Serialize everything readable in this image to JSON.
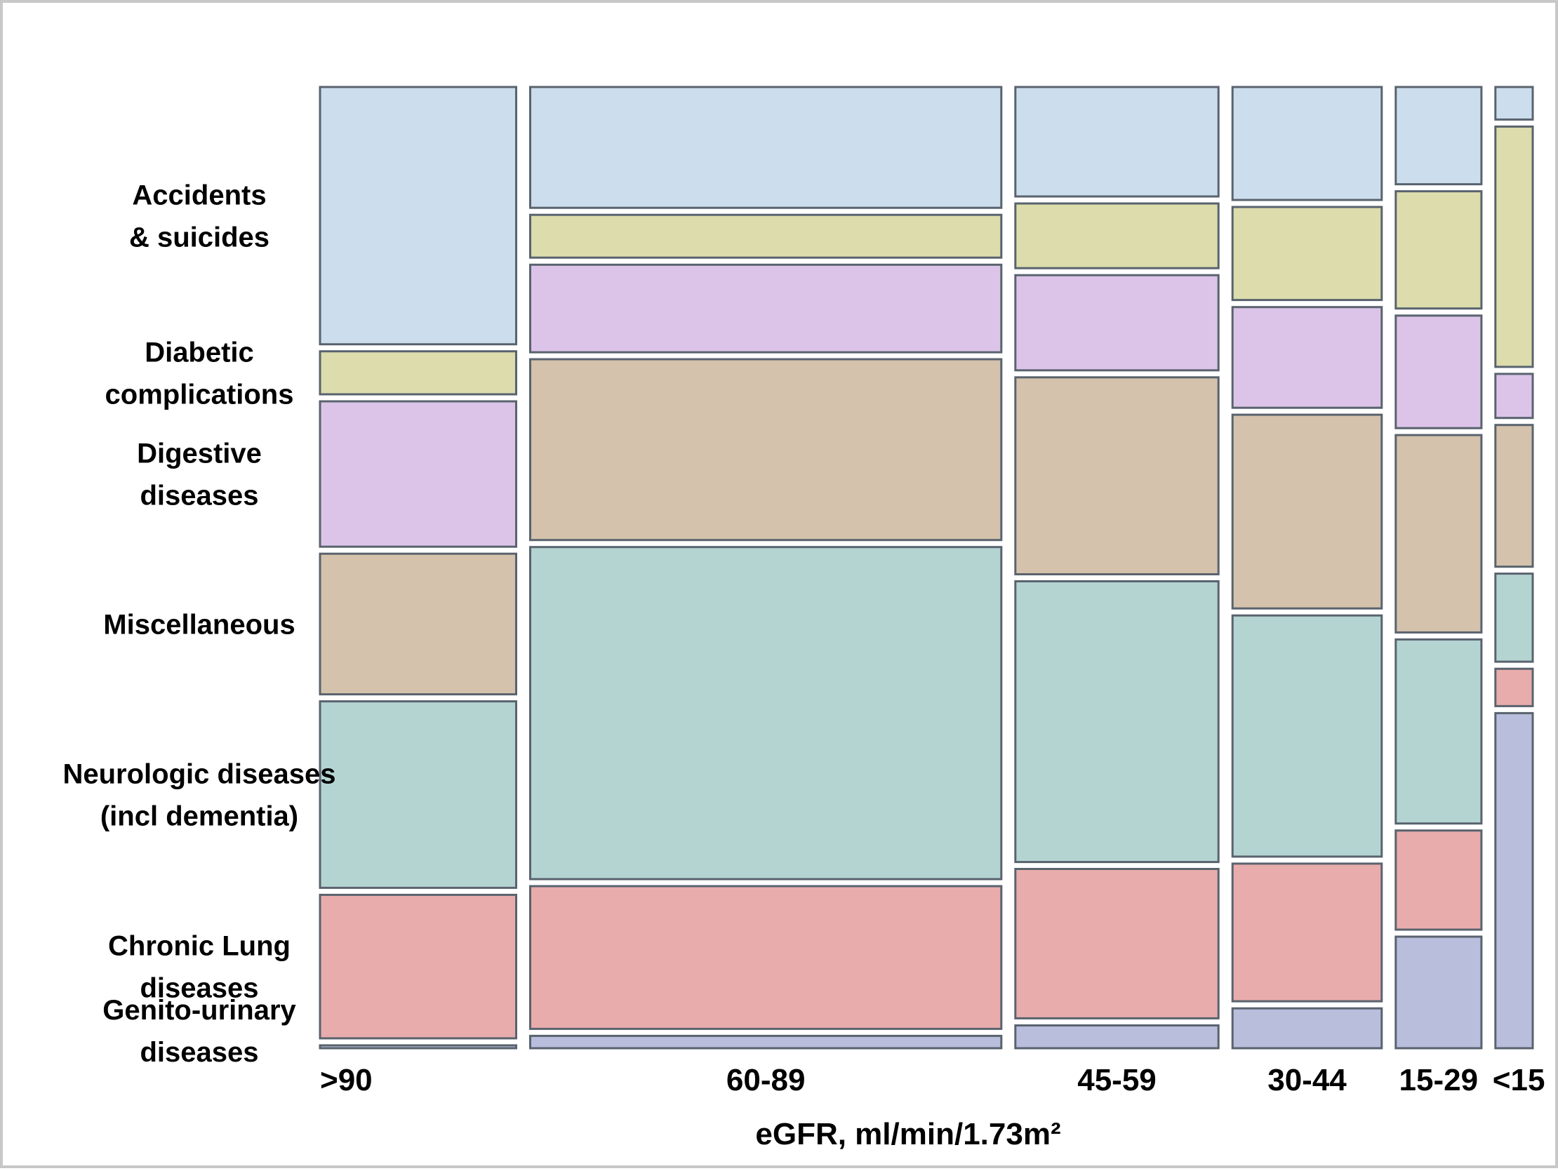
{
  "chart_data": {
    "type": "mosaic",
    "title": "",
    "xlabel": "eGFR, ml/min/1.73m²",
    "ylabel": "",
    "x_ticks": [
      ">90",
      "60-89",
      "45-59",
      "30-44",
      "15-29",
      "<15"
    ],
    "categories": [
      [
        "Genito-urinary",
        "diseases"
      ],
      [
        "Chronic Lung",
        "diseases"
      ],
      [
        "Neurologic diseases",
        "(incl dementia)"
      ],
      [
        "Miscellaneous"
      ],
      [
        "Digestive",
        "diseases"
      ],
      [
        "Diabetic",
        "complications"
      ],
      [
        "Accidents",
        "& suicides"
      ]
    ],
    "colors": [
      "#b8bedc",
      "#e8acac",
      "#b4d4d2",
      "#d4c2ac",
      "#dcc4e8",
      "#dcdcac",
      "#ccdeee"
    ],
    "columns": [
      {
        "label": ">90",
        "width": 0.142,
        "shares": [
          0.3,
          15.0,
          19.5,
          14.7,
          15.2,
          4.5,
          26.9
        ]
      },
      {
        "label": "60-89",
        "width": 0.341,
        "shares": [
          1.3,
          15.0,
          34.9,
          19.0,
          9.2,
          4.5,
          12.7
        ]
      },
      {
        "label": "45-59",
        "width": 0.147,
        "shares": [
          2.4,
          15.7,
          29.5,
          20.7,
          10.0,
          6.8,
          11.5
        ]
      },
      {
        "label": "30-44",
        "width": 0.108,
        "shares": [
          4.2,
          14.5,
          25.4,
          20.4,
          10.6,
          9.8,
          11.9
        ]
      },
      {
        "label": "15-29",
        "width": 0.062,
        "shares": [
          11.7,
          10.4,
          19.3,
          20.7,
          11.8,
          12.3,
          10.2
        ]
      },
      {
        "label": "<15",
        "width": 0.027,
        "shares": [
          35.0,
          3.9,
          9.2,
          14.8,
          4.6,
          25.1,
          3.4
        ]
      }
    ]
  }
}
